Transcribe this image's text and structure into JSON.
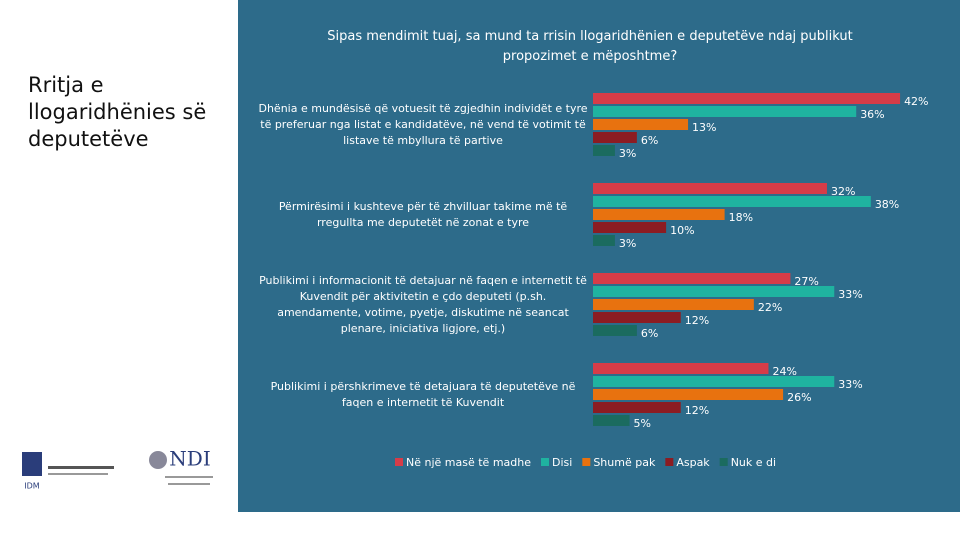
{
  "slide_title": "Rritja e llogaridhënies së deputetëve",
  "logos": {
    "idm": "IDM",
    "ndi": "NDI"
  },
  "chart_data": {
    "type": "bar",
    "orientation": "horizontal",
    "title": "Sipas mendimit tuaj, sa mund ta rrisin llogaridhënien e deputetëve ndaj publikut propozimet e mëposhtme?",
    "categories": [
      "Dhënia e mundësisë që votuesit të zgjedhin individët e tyre të preferuar nga listat e kandidatëve, në vend të votimit të listave të mbyllura të partive",
      "Përmirësimi i kushteve për të zhvilluar takime më të rregullta me deputetët në zonat e tyre",
      "Publikimi i informacionit të detajuar në faqen e internetit të Kuvendit për aktivitetin e çdo deputeti (p.sh. amendamente, votime, pyetje, diskutime në seancat plenare, iniciativa ligjore, etj.)",
      "Publikimi i përshkrimeve të detajuara të deputetëve në faqen e internetit të Kuvendit"
    ],
    "series": [
      {
        "name": "Në një masë të madhe",
        "color": "#d63c48",
        "values": [
          42,
          32,
          27,
          24
        ],
        "value_labels": [
          "42%",
          "32%",
          "27%",
          "24%"
        ]
      },
      {
        "name": "Disi",
        "color": "#1fb3a0",
        "values": [
          36,
          38,
          33,
          33
        ],
        "value_labels": [
          "36%",
          "38%",
          "33%",
          "33%"
        ]
      },
      {
        "name": "Shumë pak",
        "color": "#e8720f",
        "values": [
          13,
          18,
          22,
          26
        ],
        "value_labels": [
          "13%",
          "18%",
          "22%",
          "26%"
        ]
      },
      {
        "name": "Aspak",
        "color": "#8c1c22",
        "values": [
          6,
          10,
          12,
          12
        ],
        "value_labels": [
          "6%",
          "10%",
          "12%",
          "12%"
        ]
      },
      {
        "name": "Nuk e di",
        "color": "#1b6b5f",
        "values": [
          3,
          3,
          6,
          5
        ],
        "value_labels": [
          "3%",
          "3%",
          "6%",
          "5%"
        ]
      }
    ],
    "xlim": [
      0,
      45
    ]
  }
}
